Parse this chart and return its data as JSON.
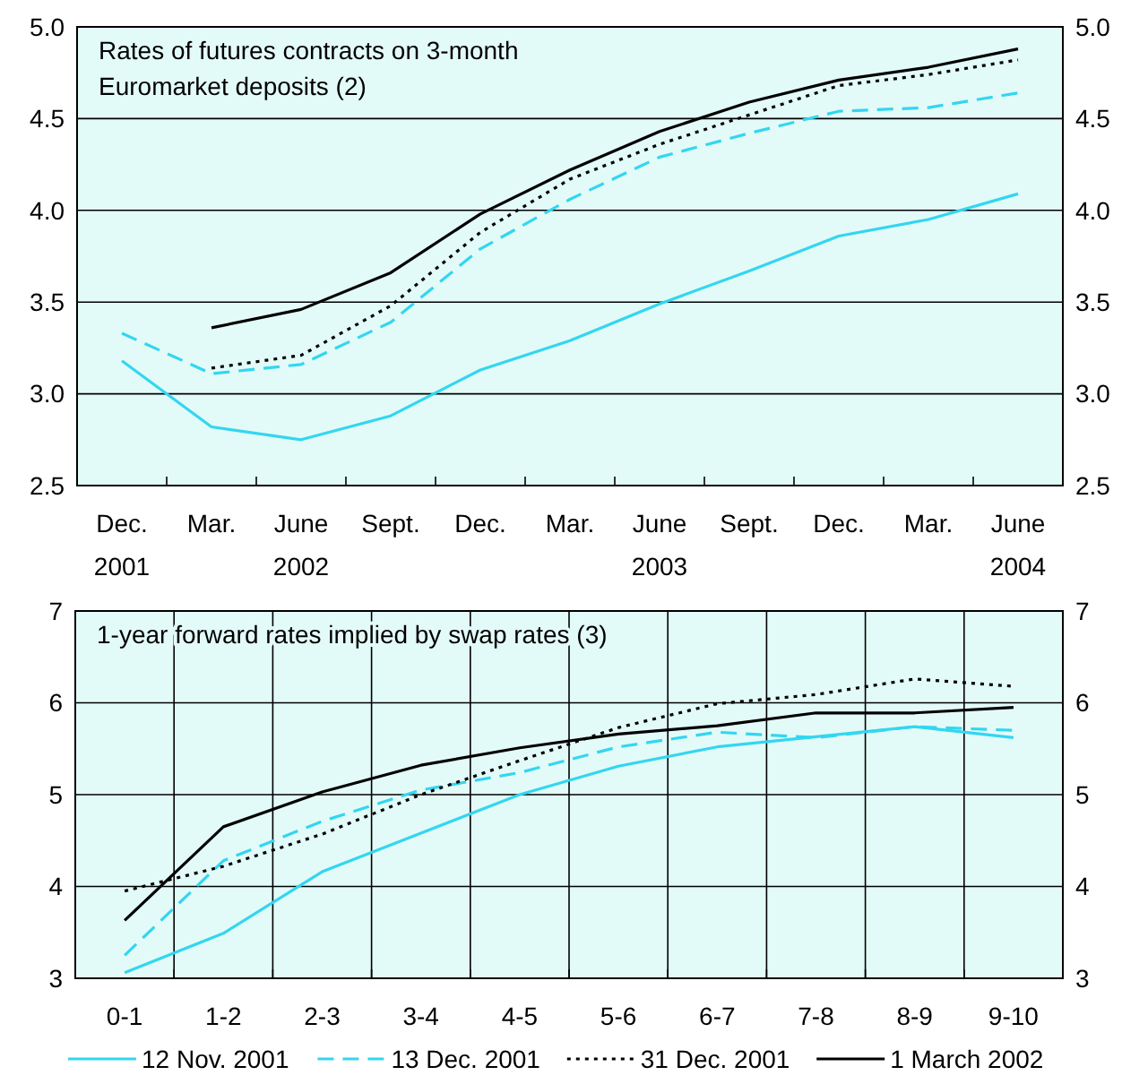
{
  "chart_data": [
    {
      "type": "line",
      "title": "Rates of futures contracts on 3-month\nEuromarket deposits (2)",
      "categories": [
        "Dec.\n2001",
        "Mar.",
        "June\n2002",
        "Sept.",
        "Dec.",
        "Mar.",
        "June\n2003",
        "Sept.",
        "Dec.",
        "Mar.",
        "June\n2004"
      ],
      "series": [
        {
          "color": "#33d6f0",
          "line_style": "solid",
          "values": [
            3.18,
            2.82,
            2.75,
            2.88,
            3.13,
            3.29,
            3.49,
            3.67,
            3.86,
            3.95,
            4.09
          ]
        },
        {
          "color": "#33d6f0",
          "line_style": "dashed",
          "values": [
            3.33,
            3.11,
            3.16,
            3.39,
            3.79,
            4.06,
            4.29,
            4.42,
            4.54,
            4.56,
            4.64
          ]
        },
        {
          "color": "#000000",
          "line_style": "dotted",
          "values": [
            null,
            3.14,
            3.21,
            3.48,
            3.88,
            4.17,
            4.36,
            4.52,
            4.68,
            4.74,
            4.82
          ]
        },
        {
          "color": "#000000",
          "line_style": "solid",
          "values": [
            null,
            3.36,
            3.46,
            3.66,
            3.98,
            4.22,
            4.43,
            4.59,
            4.71,
            4.78,
            4.88
          ]
        }
      ],
      "ylim": [
        2.5,
        5
      ],
      "yticks": [
        {
          "value": 2.5,
          "label": "2.5"
        },
        {
          "value": 3,
          "label": "3.0"
        },
        {
          "value": 3.5,
          "label": "3.5"
        },
        {
          "value": 4,
          "label": "4.0"
        },
        {
          "value": 4.5,
          "label": "4.5"
        },
        {
          "value": 5,
          "label": "5.0"
        }
      ],
      "y2lim": [
        2.5,
        5
      ],
      "y2ticks": [
        {
          "value": 2.5,
          "label": "2.5"
        },
        {
          "value": 3,
          "label": "3.0"
        },
        {
          "value": 3.5,
          "label": "3.5"
        },
        {
          "value": 4,
          "label": "4.0"
        },
        {
          "value": 4.5,
          "label": "4.5"
        },
        {
          "value": 5,
          "label": "5.0"
        }
      ],
      "grid": "y",
      "marker": "none"
    },
    {
      "type": "line",
      "title": "1-year forward rates implied by swap rates (3)",
      "categories": [
        "0-1",
        "1-2",
        "2-3",
        "3-4",
        "4-5",
        "5-6",
        "6-7",
        "7-8",
        "8-9",
        "9-10"
      ],
      "series": [
        {
          "name": "12 Nov. 2001",
          "color": "#33d6f0",
          "line_style": "solid",
          "values": [
            3.06,
            3.49,
            4.16,
            4.58,
            5.0,
            5.31,
            5.52,
            5.63,
            5.74,
            5.62
          ]
        },
        {
          "name": "13 Dec. 2001",
          "color": "#33d6f0",
          "line_style": "dashed",
          "values": [
            3.25,
            4.28,
            4.71,
            5.05,
            5.24,
            5.52,
            5.68,
            5.62,
            5.74,
            5.7
          ]
        },
        {
          "name": "31 Dec. 2001",
          "color": "#000000",
          "line_style": "dotted",
          "values": [
            3.95,
            4.22,
            4.57,
            5.0,
            5.37,
            5.73,
            5.99,
            6.09,
            6.26,
            6.18
          ]
        },
        {
          "name": "1 March 2002",
          "color": "#000000",
          "line_style": "solid",
          "values": [
            3.63,
            4.65,
            5.03,
            5.32,
            5.51,
            5.66,
            5.75,
            5.89,
            5.89,
            5.95
          ]
        }
      ],
      "ylim": [
        3,
        7
      ],
      "yticks": [
        3,
        4,
        5,
        6,
        7
      ],
      "y2lim": [
        3,
        7
      ],
      "y2ticks": [
        3,
        4,
        5,
        6,
        7
      ],
      "grid": true,
      "legend": "bottom",
      "marker": "none"
    }
  ]
}
